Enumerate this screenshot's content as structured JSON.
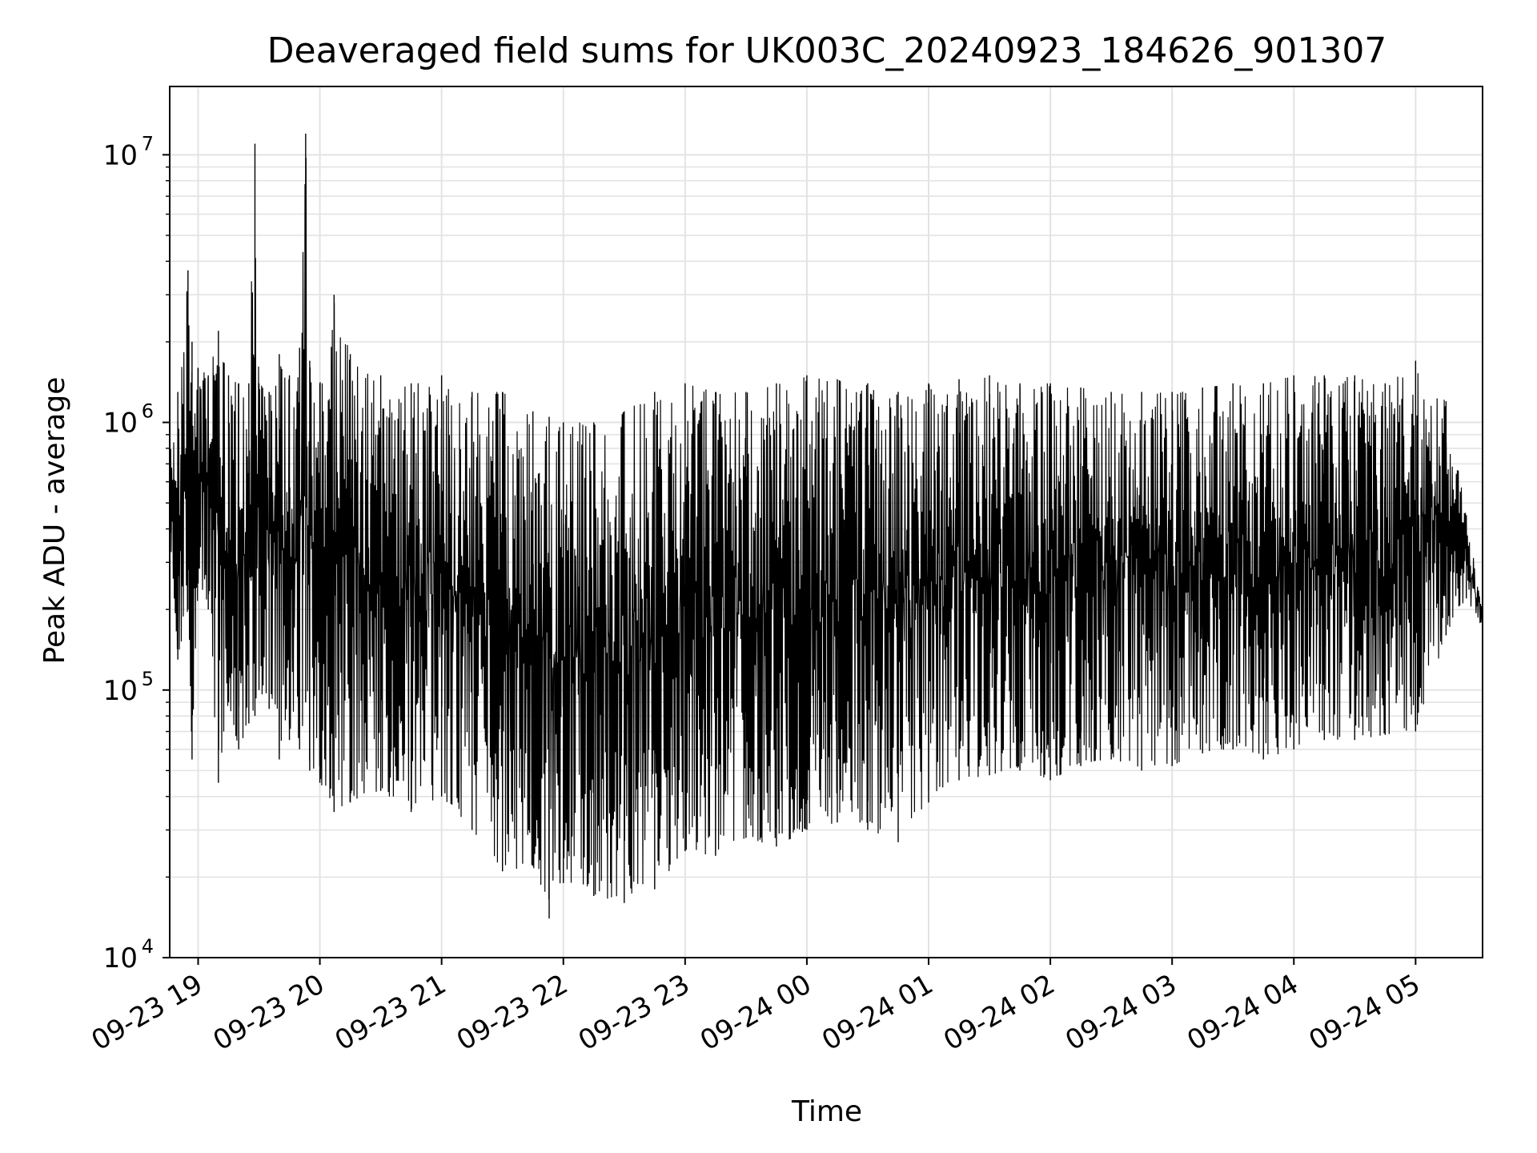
{
  "chart_data": {
    "type": "line",
    "title": "Deaveraged field sums for UK003C_20240923_184626_901307",
    "xlabel": "Time",
    "ylabel": "Peak ADU - average",
    "yscale": "log",
    "ylim": [
      10000,
      18000000
    ],
    "xlim": [
      "2024-09-23 18:46",
      "2024-09-24 05:33"
    ],
    "grid": true,
    "x_ticks": [
      {
        "t": "2024-09-23 19:00",
        "label": "09-23 19"
      },
      {
        "t": "2024-09-23 20:00",
        "label": "09-23 20"
      },
      {
        "t": "2024-09-23 21:00",
        "label": "09-23 21"
      },
      {
        "t": "2024-09-23 22:00",
        "label": "09-23 22"
      },
      {
        "t": "2024-09-23 23:00",
        "label": "09-23 23"
      },
      {
        "t": "2024-09-24 00:00",
        "label": "09-24 00"
      },
      {
        "t": "2024-09-24 01:00",
        "label": "09-24 01"
      },
      {
        "t": "2024-09-24 02:00",
        "label": "09-24 02"
      },
      {
        "t": "2024-09-24 03:00",
        "label": "09-24 03"
      },
      {
        "t": "2024-09-24 04:00",
        "label": "09-24 04"
      },
      {
        "t": "2024-09-24 05:00",
        "label": "09-24 05"
      }
    ],
    "y_ticks": [
      {
        "value": 10000,
        "base": "10",
        "exp": "4"
      },
      {
        "value": 100000,
        "base": "10",
        "exp": "5"
      },
      {
        "value": 1000000,
        "base": "10",
        "exp": "6"
      },
      {
        "value": 10000000,
        "base": "10",
        "exp": "7"
      }
    ],
    "series": [
      {
        "color": "#000000",
        "x": [
          "2024-09-23 18:46",
          "2024-09-23 18:50",
          "2024-09-23 18:55",
          "2024-09-23 18:57",
          "2024-09-23 19:00",
          "2024-09-23 19:05",
          "2024-09-23 19:10",
          "2024-09-23 19:15",
          "2024-09-23 19:20",
          "2024-09-23 19:25",
          "2024-09-23 19:28",
          "2024-09-23 19:30",
          "2024-09-23 19:35",
          "2024-09-23 19:40",
          "2024-09-23 19:45",
          "2024-09-23 19:50",
          "2024-09-23 19:53",
          "2024-09-23 19:55",
          "2024-09-23 20:00",
          "2024-09-23 20:07",
          "2024-09-23 20:15",
          "2024-09-23 20:30",
          "2024-09-23 20:45",
          "2024-09-23 21:00",
          "2024-09-23 21:15",
          "2024-09-23 21:30",
          "2024-09-23 21:45",
          "2024-09-23 21:53",
          "2024-09-23 22:00",
          "2024-09-23 22:15",
          "2024-09-23 22:30",
          "2024-09-23 22:45",
          "2024-09-23 23:00",
          "2024-09-23 23:15",
          "2024-09-23 23:30",
          "2024-09-23 23:45",
          "2024-09-24 00:00",
          "2024-09-24 00:15",
          "2024-09-24 00:30",
          "2024-09-24 00:45",
          "2024-09-24 01:00",
          "2024-09-24 01:15",
          "2024-09-24 01:30",
          "2024-09-24 01:45",
          "2024-09-24 02:00",
          "2024-09-24 02:15",
          "2024-09-24 02:30",
          "2024-09-24 02:45",
          "2024-09-24 03:00",
          "2024-09-24 03:15",
          "2024-09-24 03:30",
          "2024-09-24 03:45",
          "2024-09-24 04:00",
          "2024-09-24 04:15",
          "2024-09-24 04:30",
          "2024-09-24 04:45",
          "2024-09-24 05:00",
          "2024-09-24 05:15",
          "2024-09-24 05:25",
          "2024-09-24 05:33"
        ],
        "upper": [
          800000,
          1300000,
          3700000,
          2000000,
          1600000,
          1500000,
          2200000,
          1500000,
          1400000,
          1400000,
          11000000,
          1400000,
          1300000,
          1800000,
          1500000,
          1900000,
          12000000,
          1700000,
          1400000,
          3000000,
          1800000,
          1500000,
          1400000,
          1500000,
          1300000,
          1300000,
          1100000,
          1050000,
          1000000,
          1000000,
          1100000,
          1300000,
          1400000,
          1300000,
          1300000,
          1400000,
          1500000,
          1450000,
          1400000,
          1300000,
          1400000,
          1450000,
          1500000,
          1400000,
          1400000,
          1350000,
          1300000,
          1300000,
          1300000,
          1350000,
          1400000,
          1400000,
          1500000,
          1500000,
          1500000,
          1400000,
          1700000,
          1200000,
          450000,
          200000
        ],
        "lower": [
          400000,
          130000,
          200000,
          55000,
          250000,
          200000,
          45000,
          90000,
          60000,
          75000,
          80000,
          100000,
          85000,
          55000,
          65000,
          60000,
          90000,
          50000,
          45000,
          35000,
          38000,
          42000,
          35000,
          40000,
          30000,
          21000,
          22000,
          14000,
          19000,
          17000,
          16000,
          18000,
          25000,
          24000,
          28000,
          26000,
          30000,
          32000,
          30000,
          27000,
          38000,
          46000,
          48000,
          50000,
          46000,
          52000,
          55000,
          50000,
          52000,
          58000,
          60000,
          55000,
          60000,
          65000,
          65000,
          68000,
          70000,
          160000,
          220000,
          170000
        ]
      }
    ]
  }
}
